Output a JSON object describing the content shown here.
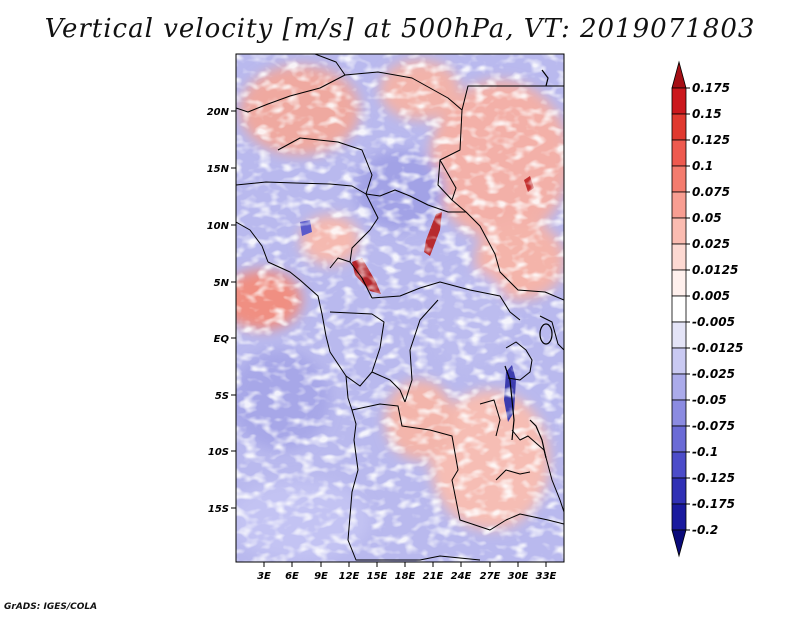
{
  "title": "Vertical velocity [m/s] at 500hPa, VT: 2019071803",
  "credit": "GrADS: IGES/COLA",
  "lat_labels": [
    "20N",
    "15N",
    "10N",
    "5N",
    "EQ",
    "5S",
    "10S",
    "15S"
  ],
  "lon_labels": [
    "3E",
    "6E",
    "9E",
    "12E",
    "15E",
    "18E",
    "21E",
    "24E",
    "27E",
    "30E",
    "33E"
  ],
  "colorbar": {
    "levels": [
      "0.175",
      "0.15",
      "0.125",
      "0.1",
      "0.075",
      "0.05",
      "0.025",
      "0.0125",
      "0.005",
      "-0.005",
      "-0.0125",
      "-0.025",
      "-0.05",
      "-0.075",
      "-0.1",
      "-0.125",
      "-0.175",
      "-0.2"
    ],
    "colors": [
      "#a50f15",
      "#cb181d",
      "#e0392f",
      "#ee5a4f",
      "#f47c6e",
      "#f89e92",
      "#fbbcb1",
      "#fdd9d2",
      "#fff0ed",
      "#ffffff",
      "#e4e4f7",
      "#cacaf2",
      "#ababea",
      "#8b8be1",
      "#6b6bd6",
      "#4c4cc9",
      "#3030b5",
      "#1a1a9e",
      "#0a0a7a"
    ]
  }
}
